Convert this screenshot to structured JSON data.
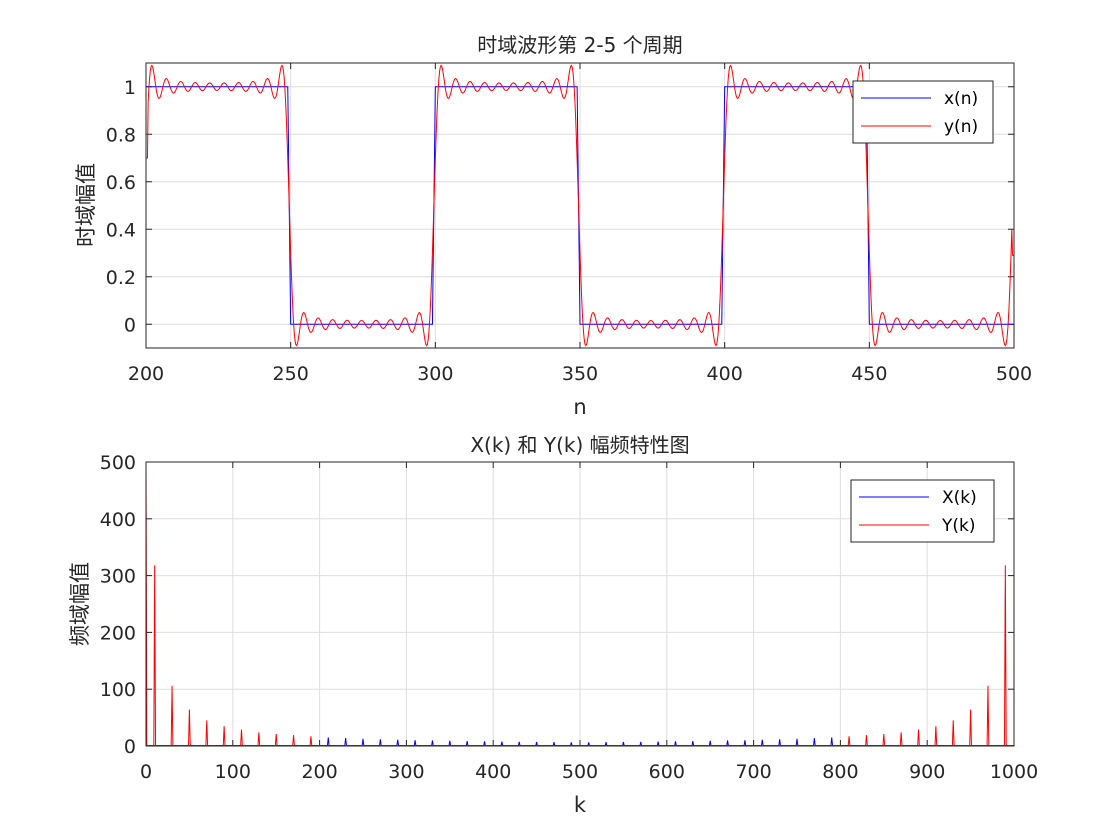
{
  "colors": {
    "x_series": "#0000ff",
    "y_series": "#ff0000",
    "grid": "#dedede",
    "axis": "#262626"
  },
  "chart_data": [
    {
      "type": "line",
      "title": "时域波形第 2-5 个周期",
      "xlabel": "n",
      "ylabel": "时域幅值",
      "xlim": [
        200,
        500
      ],
      "ylim": [
        -0.1,
        1.1
      ],
      "grid": true,
      "legend_position": "top-right",
      "x_ticks": [
        "200",
        "250",
        "300",
        "350",
        "400",
        "450",
        "500"
      ],
      "y_ticks": [
        "0",
        "0.2",
        "0.4",
        "0.6",
        "0.8",
        "1"
      ],
      "period": 100,
      "high_intervals": [
        [
          200,
          250
        ],
        [
          300,
          350
        ],
        [
          400,
          450
        ]
      ],
      "series": [
        {
          "name": "x(n)",
          "color": "#0000ff",
          "kind": "square-wave",
          "high": 1,
          "low": 0
        },
        {
          "name": "y(n)",
          "color": "#ff0000",
          "kind": "low-pass-square-wave",
          "harmonics": [
            1,
            3,
            5,
            7,
            9,
            11,
            13,
            15,
            17,
            19
          ],
          "start_value": 0.7,
          "end_value": 0.29
        }
      ]
    },
    {
      "type": "stem",
      "title": "X(k) 和 Y(k) 幅频特性图",
      "xlabel": "k",
      "ylabel": "频域幅值",
      "xlim": [
        0,
        1000
      ],
      "ylim": [
        0,
        500
      ],
      "grid": true,
      "legend_position": "top-right",
      "x_ticks": [
        "0",
        "100",
        "200",
        "300",
        "400",
        "500",
        "600",
        "700",
        "800",
        "900",
        "1000"
      ],
      "y_ticks": [
        "0",
        "100",
        "200",
        "300",
        "400",
        "500"
      ],
      "series": [
        {
          "name": "X(k)",
          "color": "#0000ff",
          "k": [
            210,
            230,
            250,
            270,
            290,
            310,
            330,
            350,
            370,
            390,
            410,
            430,
            450,
            470,
            490,
            510,
            530,
            550,
            570,
            590,
            610,
            630,
            650,
            670,
            690,
            710,
            730,
            750,
            770,
            790
          ],
          "values": [
            15.2,
            13.9,
            12.7,
            11.8,
            11.0,
            10.3,
            9.7,
            9.1,
            8.6,
            8.2,
            7.8,
            7.4,
            7.1,
            6.8,
            6.5,
            6.5,
            6.8,
            7.1,
            7.4,
            7.8,
            8.2,
            8.6,
            9.1,
            9.7,
            10.3,
            11.0,
            11.8,
            12.7,
            13.9,
            15.2
          ]
        },
        {
          "name": "Y(k)",
          "color": "#ff0000",
          "k": [
            0,
            10,
            30,
            50,
            70,
            90,
            110,
            130,
            150,
            170,
            190,
            810,
            830,
            850,
            870,
            890,
            910,
            930,
            950,
            970,
            990
          ],
          "values": [
            500,
            318,
            106,
            64,
            45,
            35,
            29,
            24,
            21,
            19,
            17,
            17,
            19,
            21,
            24,
            29,
            35,
            45,
            64,
            106,
            318
          ]
        }
      ]
    }
  ]
}
